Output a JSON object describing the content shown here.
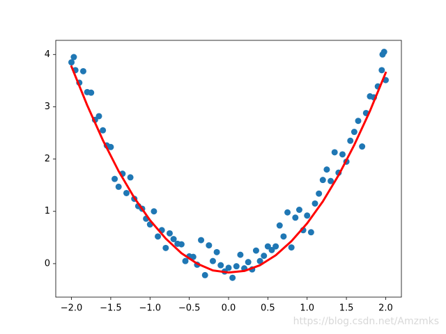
{
  "chart_data": {
    "type": "scatter",
    "xlim": [
      -2.2,
      2.2
    ],
    "ylim": [
      -0.64,
      4.27
    ],
    "xticks": [
      {
        "value": -2,
        "label": "−2.0"
      },
      {
        "value": -1.5,
        "label": "−1.5"
      },
      {
        "value": -1,
        "label": "−1.0"
      },
      {
        "value": -0.5,
        "label": "−0.5"
      },
      {
        "value": 0,
        "label": "0.0"
      },
      {
        "value": 0.5,
        "label": "0.5"
      },
      {
        "value": 1,
        "label": "1.0"
      },
      {
        "value": 1.5,
        "label": "1.5"
      },
      {
        "value": 2,
        "label": "2.0"
      }
    ],
    "yticks": [
      0,
      1,
      2,
      3,
      4
    ],
    "grid": false,
    "watermark": "https://blog.csdn.net/Amzmks",
    "series": [
      {
        "type": "scatter",
        "color": "#1f77b4",
        "x": [
          -2.0,
          -1.97,
          -1.95,
          -1.9,
          -1.85,
          -1.8,
          -1.75,
          -1.7,
          -1.65,
          -1.6,
          -1.55,
          -1.5,
          -1.45,
          -1.4,
          -1.35,
          -1.3,
          -1.25,
          -1.2,
          -1.15,
          -1.1,
          -1.05,
          -1.0,
          -0.95,
          -0.9,
          -0.85,
          -0.8,
          -0.75,
          -0.7,
          -0.65,
          -0.6,
          -0.55,
          -0.5,
          -0.45,
          -0.4,
          -0.35,
          -0.3,
          -0.25,
          -0.2,
          -0.15,
          -0.1,
          -0.05,
          0.0,
          0.05,
          0.1,
          0.15,
          0.2,
          0.25,
          0.3,
          0.35,
          0.4,
          0.45,
          0.5,
          0.55,
          0.6,
          0.65,
          0.7,
          0.75,
          0.8,
          0.85,
          0.9,
          0.95,
          1.0,
          1.05,
          1.1,
          1.15,
          1.2,
          1.25,
          1.3,
          1.35,
          1.4,
          1.45,
          1.5,
          1.55,
          1.6,
          1.65,
          1.7,
          1.75,
          1.8,
          1.85,
          1.9,
          1.95,
          1.96,
          1.98,
          2.0
        ],
        "values": [
          3.85,
          3.95,
          3.7,
          3.46,
          3.68,
          3.28,
          3.27,
          2.75,
          2.82,
          2.55,
          2.26,
          2.23,
          1.62,
          1.47,
          1.72,
          1.35,
          1.65,
          1.24,
          1.1,
          1.05,
          0.86,
          0.75,
          1.0,
          0.52,
          0.64,
          0.3,
          0.58,
          0.47,
          0.38,
          0.37,
          0.05,
          0.14,
          0.13,
          -0.02,
          0.45,
          -0.22,
          0.35,
          0.05,
          0.22,
          -0.03,
          -0.15,
          -0.08,
          -0.27,
          -0.05,
          0.17,
          -0.09,
          0.03,
          -0.11,
          0.25,
          0.05,
          0.15,
          0.33,
          0.26,
          0.33,
          0.73,
          0.52,
          0.98,
          0.31,
          0.88,
          1.03,
          0.64,
          0.92,
          0.6,
          1.15,
          1.34,
          1.6,
          1.8,
          1.58,
          2.13,
          1.74,
          2.09,
          1.95,
          2.35,
          2.52,
          2.73,
          2.24,
          2.88,
          3.2,
          3.18,
          3.39,
          3.7,
          4.0,
          4.05,
          3.51
        ]
      },
      {
        "type": "line",
        "color": "#ff0000",
        "x": [
          -2.0,
          -1.8,
          -1.6,
          -1.4,
          -1.2,
          -1.0,
          -0.8,
          -0.6,
          -0.4,
          -0.2,
          0.0,
          0.2,
          0.4,
          0.6,
          0.8,
          1.0,
          1.2,
          1.4,
          1.6,
          1.8,
          2.0
        ],
        "values": [
          3.77,
          3.03,
          2.36,
          1.77,
          1.26,
          0.83,
          0.48,
          0.2,
          0.0,
          -0.13,
          -0.17,
          -0.14,
          -0.03,
          0.16,
          0.43,
          0.77,
          1.19,
          1.69,
          2.27,
          2.92,
          3.65
        ]
      }
    ]
  }
}
